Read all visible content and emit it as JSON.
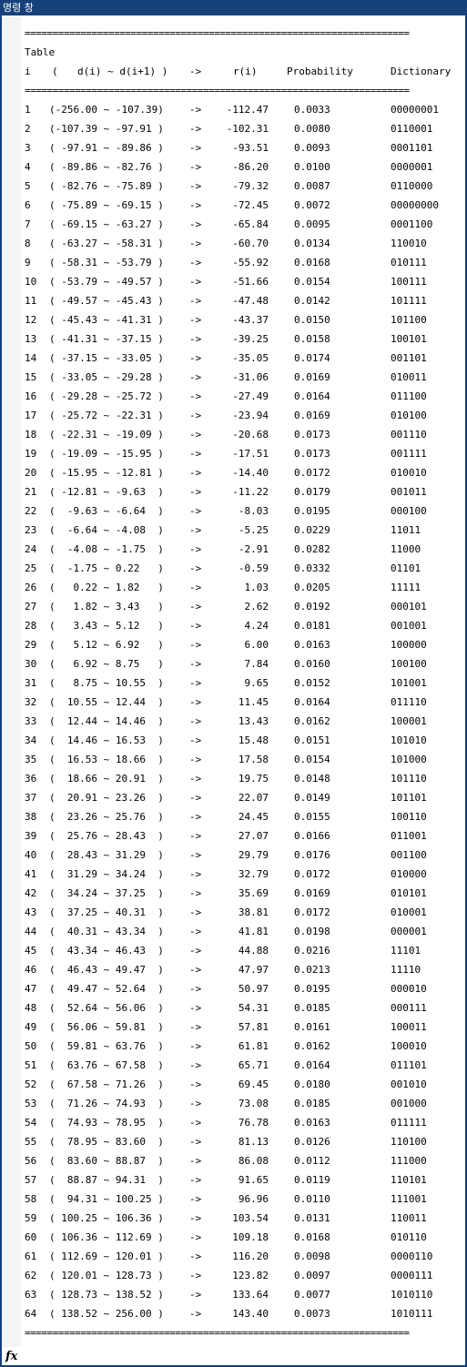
{
  "window": {
    "title": "명령 창"
  },
  "separator": "=====================================================================",
  "table": {
    "label": "Table",
    "headers": {
      "i": "i",
      "open": "(",
      "range": "d(i) ~ d(i+1) )",
      "arrow": "->",
      "r": "r(i)",
      "probability": "Probability",
      "dictionary": "Dictionary"
    },
    "rows": [
      {
        "i": "1",
        "range": "(-256.00 ~ -107.39)",
        "r": "-112.47",
        "p": "0.0033",
        "d": "00000001"
      },
      {
        "i": "2",
        "range": "(-107.39 ~ -97.91 )",
        "r": "-102.31",
        "p": "0.0080",
        "d": "0110001"
      },
      {
        "i": "3",
        "range": "( -97.91 ~ -89.86 )",
        "r": "-93.51",
        "p": "0.0093",
        "d": "0001101"
      },
      {
        "i": "4",
        "range": "( -89.86 ~ -82.76 )",
        "r": "-86.20",
        "p": "0.0100",
        "d": "0000001"
      },
      {
        "i": "5",
        "range": "( -82.76 ~ -75.89 )",
        "r": "-79.32",
        "p": "0.0087",
        "d": "0110000"
      },
      {
        "i": "6",
        "range": "( -75.89 ~ -69.15 )",
        "r": "-72.45",
        "p": "0.0072",
        "d": "00000000"
      },
      {
        "i": "7",
        "range": "( -69.15 ~ -63.27 )",
        "r": "-65.84",
        "p": "0.0095",
        "d": "0001100"
      },
      {
        "i": "8",
        "range": "( -63.27 ~ -58.31 )",
        "r": "-60.70",
        "p": "0.0134",
        "d": "110010"
      },
      {
        "i": "9",
        "range": "( -58.31 ~ -53.79 )",
        "r": "-55.92",
        "p": "0.0168",
        "d": "010111"
      },
      {
        "i": "10",
        "range": "( -53.79 ~ -49.57 )",
        "r": "-51.66",
        "p": "0.0154",
        "d": "100111"
      },
      {
        "i": "11",
        "range": "( -49.57 ~ -45.43 )",
        "r": "-47.48",
        "p": "0.0142",
        "d": "101111"
      },
      {
        "i": "12",
        "range": "( -45.43 ~ -41.31 )",
        "r": "-43.37",
        "p": "0.0150",
        "d": "101100"
      },
      {
        "i": "13",
        "range": "( -41.31 ~ -37.15 )",
        "r": "-39.25",
        "p": "0.0158",
        "d": "100101"
      },
      {
        "i": "14",
        "range": "( -37.15 ~ -33.05 )",
        "r": "-35.05",
        "p": "0.0174",
        "d": "001101"
      },
      {
        "i": "15",
        "range": "( -33.05 ~ -29.28 )",
        "r": "-31.06",
        "p": "0.0169",
        "d": "010011"
      },
      {
        "i": "16",
        "range": "( -29.28 ~ -25.72 )",
        "r": "-27.49",
        "p": "0.0164",
        "d": "011100"
      },
      {
        "i": "17",
        "range": "( -25.72 ~ -22.31 )",
        "r": "-23.94",
        "p": "0.0169",
        "d": "010100"
      },
      {
        "i": "18",
        "range": "( -22.31 ~ -19.09 )",
        "r": "-20.68",
        "p": "0.0173",
        "d": "001110"
      },
      {
        "i": "19",
        "range": "( -19.09 ~ -15.95 )",
        "r": "-17.51",
        "p": "0.0173",
        "d": "001111"
      },
      {
        "i": "20",
        "range": "( -15.95 ~ -12.81 )",
        "r": "-14.40",
        "p": "0.0172",
        "d": "010010"
      },
      {
        "i": "21",
        "range": "( -12.81 ~ -9.63  )",
        "r": "-11.22",
        "p": "0.0179",
        "d": "001011"
      },
      {
        "i": "22",
        "range": "(  -9.63 ~ -6.64  )",
        "r": "-8.03",
        "p": "0.0195",
        "d": "000100"
      },
      {
        "i": "23",
        "range": "(  -6.64 ~ -4.08  )",
        "r": "-5.25",
        "p": "0.0229",
        "d": "11011"
      },
      {
        "i": "24",
        "range": "(  -4.08 ~ -1.75  )",
        "r": "-2.91",
        "p": "0.0282",
        "d": "11000"
      },
      {
        "i": "25",
        "range": "(  -1.75 ~ 0.22   )",
        "r": "-0.59",
        "p": "0.0332",
        "d": "01101"
      },
      {
        "i": "26",
        "range": "(   0.22 ~ 1.82   )",
        "r": "1.03",
        "p": "0.0205",
        "d": "11111"
      },
      {
        "i": "27",
        "range": "(   1.82 ~ 3.43   )",
        "r": "2.62",
        "p": "0.0192",
        "d": "000101"
      },
      {
        "i": "28",
        "range": "(   3.43 ~ 5.12   )",
        "r": "4.24",
        "p": "0.0181",
        "d": "001001"
      },
      {
        "i": "29",
        "range": "(   5.12 ~ 6.92   )",
        "r": "6.00",
        "p": "0.0163",
        "d": "100000"
      },
      {
        "i": "30",
        "range": "(   6.92 ~ 8.75   )",
        "r": "7.84",
        "p": "0.0160",
        "d": "100100"
      },
      {
        "i": "31",
        "range": "(   8.75 ~ 10.55  )",
        "r": "9.65",
        "p": "0.0152",
        "d": "101001"
      },
      {
        "i": "32",
        "range": "(  10.55 ~ 12.44  )",
        "r": "11.45",
        "p": "0.0164",
        "d": "011110"
      },
      {
        "i": "33",
        "range": "(  12.44 ~ 14.46  )",
        "r": "13.43",
        "p": "0.0162",
        "d": "100001"
      },
      {
        "i": "34",
        "range": "(  14.46 ~ 16.53  )",
        "r": "15.48",
        "p": "0.0151",
        "d": "101010"
      },
      {
        "i": "35",
        "range": "(  16.53 ~ 18.66  )",
        "r": "17.58",
        "p": "0.0154",
        "d": "101000"
      },
      {
        "i": "36",
        "range": "(  18.66 ~ 20.91  )",
        "r": "19.75",
        "p": "0.0148",
        "d": "101110"
      },
      {
        "i": "37",
        "range": "(  20.91 ~ 23.26  )",
        "r": "22.07",
        "p": "0.0149",
        "d": "101101"
      },
      {
        "i": "38",
        "range": "(  23.26 ~ 25.76  )",
        "r": "24.45",
        "p": "0.0155",
        "d": "100110"
      },
      {
        "i": "39",
        "range": "(  25.76 ~ 28.43  )",
        "r": "27.07",
        "p": "0.0166",
        "d": "011001"
      },
      {
        "i": "40",
        "range": "(  28.43 ~ 31.29  )",
        "r": "29.79",
        "p": "0.0176",
        "d": "001100"
      },
      {
        "i": "41",
        "range": "(  31.29 ~ 34.24  )",
        "r": "32.79",
        "p": "0.0172",
        "d": "010000"
      },
      {
        "i": "42",
        "range": "(  34.24 ~ 37.25  )",
        "r": "35.69",
        "p": "0.0169",
        "d": "010101"
      },
      {
        "i": "43",
        "range": "(  37.25 ~ 40.31  )",
        "r": "38.81",
        "p": "0.0172",
        "d": "010001"
      },
      {
        "i": "44",
        "range": "(  40.31 ~ 43.34  )",
        "r": "41.81",
        "p": "0.0198",
        "d": "000001"
      },
      {
        "i": "45",
        "range": "(  43.34 ~ 46.43  )",
        "r": "44.88",
        "p": "0.0216",
        "d": "11101"
      },
      {
        "i": "46",
        "range": "(  46.43 ~ 49.47  )",
        "r": "47.97",
        "p": "0.0213",
        "d": "11110"
      },
      {
        "i": "47",
        "range": "(  49.47 ~ 52.64  )",
        "r": "50.97",
        "p": "0.0195",
        "d": "000010"
      },
      {
        "i": "48",
        "range": "(  52.64 ~ 56.06  )",
        "r": "54.31",
        "p": "0.0185",
        "d": "000111"
      },
      {
        "i": "49",
        "range": "(  56.06 ~ 59.81  )",
        "r": "57.81",
        "p": "0.0161",
        "d": "100011"
      },
      {
        "i": "50",
        "range": "(  59.81 ~ 63.76  )",
        "r": "61.81",
        "p": "0.0162",
        "d": "100010"
      },
      {
        "i": "51",
        "range": "(  63.76 ~ 67.58  )",
        "r": "65.71",
        "p": "0.0164",
        "d": "011101"
      },
      {
        "i": "52",
        "range": "(  67.58 ~ 71.26  )",
        "r": "69.45",
        "p": "0.0180",
        "d": "001010"
      },
      {
        "i": "53",
        "range": "(  71.26 ~ 74.93  )",
        "r": "73.08",
        "p": "0.0185",
        "d": "001000"
      },
      {
        "i": "54",
        "range": "(  74.93 ~ 78.95  )",
        "r": "76.78",
        "p": "0.0163",
        "d": "011111"
      },
      {
        "i": "55",
        "range": "(  78.95 ~ 83.60  )",
        "r": "81.13",
        "p": "0.0126",
        "d": "110100"
      },
      {
        "i": "56",
        "range": "(  83.60 ~ 88.87  )",
        "r": "86.08",
        "p": "0.0112",
        "d": "111000"
      },
      {
        "i": "57",
        "range": "(  88.87 ~ 94.31  )",
        "r": "91.65",
        "p": "0.0119",
        "d": "110101"
      },
      {
        "i": "58",
        "range": "(  94.31 ~ 100.25 )",
        "r": "96.96",
        "p": "0.0110",
        "d": "111001"
      },
      {
        "i": "59",
        "range": "( 100.25 ~ 106.36 )",
        "r": "103.54",
        "p": "0.0131",
        "d": "110011"
      },
      {
        "i": "60",
        "range": "( 106.36 ~ 112.69 )",
        "r": "109.18",
        "p": "0.0168",
        "d": "010110"
      },
      {
        "i": "61",
        "range": "( 112.69 ~ 120.01 )",
        "r": "116.20",
        "p": "0.0098",
        "d": "0000110"
      },
      {
        "i": "62",
        "range": "( 120.01 ~ 128.73 )",
        "r": "123.82",
        "p": "0.0097",
        "d": "0000111"
      },
      {
        "i": "63",
        "range": "( 128.73 ~ 138.52 )",
        "r": "133.64",
        "p": "0.0077",
        "d": "1010110"
      },
      {
        "i": "64",
        "range": "( 138.52 ~ 256.00 )",
        "r": "143.40",
        "p": "0.0073",
        "d": "1010111"
      }
    ],
    "arrow": "->"
  },
  "prompt": {
    "symbol": "fx"
  },
  "colors": {
    "titlebar": "#16407a",
    "background": "#ffffff",
    "text": "#000000"
  }
}
